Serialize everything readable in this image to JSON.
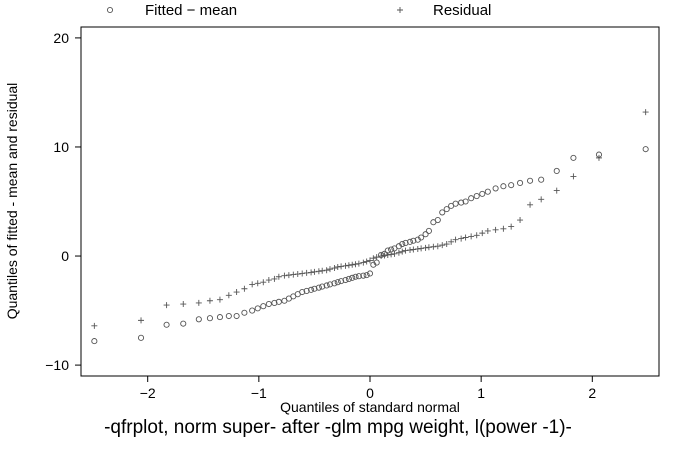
{
  "chart_data": {
    "type": "scatter",
    "title": "",
    "caption": "-qfrplot, norm super- after -glm mpg weight, l(power -1)-",
    "xlabel": "Quantiles of standard normal",
    "ylabel": "Quantiles of fitted - mean and residual",
    "xlim": [
      -2.6,
      2.6
    ],
    "ylim": [
      -11,
      21
    ],
    "x_ticks": [
      -2,
      -1,
      0,
      1,
      2
    ],
    "x_tick_labels": [
      "−2",
      "−1",
      "0",
      "1",
      "2"
    ],
    "y_ticks": [
      -10,
      0,
      10,
      20
    ],
    "y_tick_labels": [
      "−10",
      "0",
      "10",
      "20"
    ],
    "grid": false,
    "legend_position": "top",
    "series": [
      {
        "name": "Fitted − mean",
        "marker": "circle",
        "color": "#555555",
        "points": [
          [
            -2.48,
            -7.8
          ],
          [
            -2.06,
            -7.5
          ],
          [
            -1.83,
            -6.3
          ],
          [
            -1.68,
            -6.2
          ],
          [
            -1.54,
            -5.8
          ],
          [
            -1.44,
            -5.7
          ],
          [
            -1.35,
            -5.6
          ],
          [
            -1.27,
            -5.5
          ],
          [
            -1.2,
            -5.5
          ],
          [
            -1.13,
            -5.2
          ],
          [
            -1.06,
            -5.0
          ],
          [
            -1.01,
            -4.8
          ],
          [
            -0.96,
            -4.6
          ],
          [
            -0.91,
            -4.4
          ],
          [
            -0.86,
            -4.3
          ],
          [
            -0.82,
            -4.2
          ],
          [
            -0.77,
            -4.1
          ],
          [
            -0.73,
            -3.9
          ],
          [
            -0.69,
            -3.7
          ],
          [
            -0.65,
            -3.5
          ],
          [
            -0.61,
            -3.3
          ],
          [
            -0.57,
            -3.2
          ],
          [
            -0.53,
            -3.1
          ],
          [
            -0.5,
            -3.0
          ],
          [
            -0.46,
            -2.9
          ],
          [
            -0.43,
            -2.8
          ],
          [
            -0.39,
            -2.7
          ],
          [
            -0.36,
            -2.6
          ],
          [
            -0.32,
            -2.5
          ],
          [
            -0.29,
            -2.4
          ],
          [
            -0.26,
            -2.3
          ],
          [
            -0.22,
            -2.2
          ],
          [
            -0.19,
            -2.1
          ],
          [
            -0.16,
            -2.0
          ],
          [
            -0.13,
            -1.9
          ],
          [
            -0.1,
            -1.85
          ],
          [
            -0.06,
            -1.8
          ],
          [
            -0.03,
            -1.75
          ],
          [
            0.0,
            -1.6
          ],
          [
            0.03,
            -0.8
          ],
          [
            0.06,
            -0.6
          ],
          [
            0.1,
            0.1
          ],
          [
            0.13,
            0.2
          ],
          [
            0.16,
            0.5
          ],
          [
            0.19,
            0.6
          ],
          [
            0.22,
            0.7
          ],
          [
            0.26,
            0.9
          ],
          [
            0.29,
            1.1
          ],
          [
            0.32,
            1.2
          ],
          [
            0.36,
            1.3
          ],
          [
            0.39,
            1.4
          ],
          [
            0.43,
            1.5
          ],
          [
            0.46,
            1.7
          ],
          [
            0.5,
            2.0
          ],
          [
            0.53,
            2.3
          ],
          [
            0.57,
            3.1
          ],
          [
            0.61,
            3.3
          ],
          [
            0.65,
            4.0
          ],
          [
            0.69,
            4.3
          ],
          [
            0.73,
            4.6
          ],
          [
            0.77,
            4.8
          ],
          [
            0.82,
            4.9
          ],
          [
            0.86,
            5.0
          ],
          [
            0.91,
            5.3
          ],
          [
            0.96,
            5.5
          ],
          [
            1.01,
            5.7
          ],
          [
            1.06,
            5.9
          ],
          [
            1.13,
            6.2
          ],
          [
            1.2,
            6.4
          ],
          [
            1.27,
            6.5
          ],
          [
            1.35,
            6.7
          ],
          [
            1.44,
            6.9
          ],
          [
            1.54,
            7.0
          ],
          [
            1.68,
            7.8
          ],
          [
            1.83,
            9.0
          ],
          [
            2.06,
            9.3
          ],
          [
            2.48,
            9.8
          ]
        ]
      },
      {
        "name": "Residual",
        "marker": "plus",
        "color": "#555555",
        "points": [
          [
            -2.48,
            -6.4
          ],
          [
            -2.06,
            -5.9
          ],
          [
            -1.83,
            -4.5
          ],
          [
            -1.68,
            -4.4
          ],
          [
            -1.54,
            -4.3
          ],
          [
            -1.44,
            -4.1
          ],
          [
            -1.35,
            -4.0
          ],
          [
            -1.27,
            -3.6
          ],
          [
            -1.2,
            -3.3
          ],
          [
            -1.13,
            -3.0
          ],
          [
            -1.06,
            -2.6
          ],
          [
            -1.01,
            -2.5
          ],
          [
            -0.96,
            -2.4
          ],
          [
            -0.91,
            -2.2
          ],
          [
            -0.86,
            -2.1
          ],
          [
            -0.82,
            -1.9
          ],
          [
            -0.77,
            -1.8
          ],
          [
            -0.73,
            -1.75
          ],
          [
            -0.69,
            -1.7
          ],
          [
            -0.65,
            -1.65
          ],
          [
            -0.61,
            -1.6
          ],
          [
            -0.57,
            -1.55
          ],
          [
            -0.53,
            -1.5
          ],
          [
            -0.5,
            -1.45
          ],
          [
            -0.46,
            -1.4
          ],
          [
            -0.43,
            -1.35
          ],
          [
            -0.39,
            -1.3
          ],
          [
            -0.36,
            -1.2
          ],
          [
            -0.32,
            -1.1
          ],
          [
            -0.29,
            -1.0
          ],
          [
            -0.26,
            -0.95
          ],
          [
            -0.22,
            -0.9
          ],
          [
            -0.19,
            -0.85
          ],
          [
            -0.16,
            -0.8
          ],
          [
            -0.13,
            -0.75
          ],
          [
            -0.1,
            -0.7
          ],
          [
            -0.06,
            -0.6
          ],
          [
            -0.03,
            -0.5
          ],
          [
            0.0,
            -0.4
          ],
          [
            0.03,
            -0.2
          ],
          [
            0.06,
            -0.1
          ],
          [
            0.1,
            0.0
          ],
          [
            0.13,
            0.05
          ],
          [
            0.16,
            0.1
          ],
          [
            0.19,
            0.15
          ],
          [
            0.22,
            0.2
          ],
          [
            0.26,
            0.3
          ],
          [
            0.29,
            0.4
          ],
          [
            0.32,
            0.5
          ],
          [
            0.36,
            0.55
          ],
          [
            0.39,
            0.6
          ],
          [
            0.43,
            0.65
          ],
          [
            0.46,
            0.7
          ],
          [
            0.5,
            0.75
          ],
          [
            0.53,
            0.8
          ],
          [
            0.57,
            0.85
          ],
          [
            0.61,
            0.9
          ],
          [
            0.65,
            1.0
          ],
          [
            0.69,
            1.1
          ],
          [
            0.73,
            1.3
          ],
          [
            0.77,
            1.5
          ],
          [
            0.82,
            1.6
          ],
          [
            0.86,
            1.7
          ],
          [
            0.91,
            1.8
          ],
          [
            0.96,
            1.9
          ],
          [
            1.01,
            2.1
          ],
          [
            1.06,
            2.3
          ],
          [
            1.13,
            2.4
          ],
          [
            1.2,
            2.5
          ],
          [
            1.27,
            2.7
          ],
          [
            1.35,
            3.3
          ],
          [
            1.44,
            4.7
          ],
          [
            1.54,
            5.2
          ],
          [
            1.68,
            6.0
          ],
          [
            1.83,
            7.3
          ],
          [
            2.06,
            9.0
          ],
          [
            2.48,
            13.2
          ]
        ]
      }
    ]
  }
}
